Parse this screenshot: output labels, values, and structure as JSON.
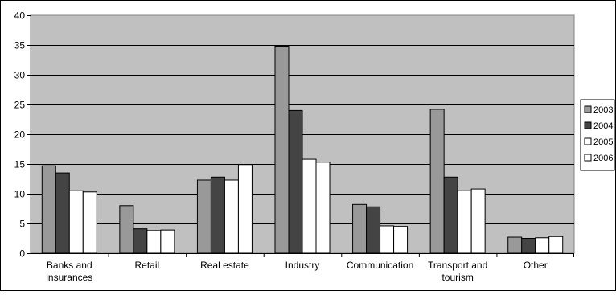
{
  "chart_data": {
    "type": "bar",
    "categories": [
      [
        "Banks and",
        "insurances"
      ],
      [
        "Retail"
      ],
      [
        "Real estate"
      ],
      [
        "Industry"
      ],
      [
        "Communication"
      ],
      [
        "Transport and",
        "tourism"
      ],
      [
        "Other"
      ]
    ],
    "series": [
      {
        "name": "2003",
        "color": "#999999",
        "values": [
          14.7,
          8.0,
          12.3,
          34.8,
          8.2,
          24.2,
          2.7
        ]
      },
      {
        "name": "2004",
        "color": "#444444",
        "values": [
          13.5,
          4.1,
          12.8,
          24.0,
          7.8,
          12.8,
          2.5
        ]
      },
      {
        "name": "2005",
        "color": "#ffffff",
        "values": [
          10.5,
          3.8,
          12.3,
          15.8,
          4.6,
          10.5,
          2.6
        ]
      },
      {
        "name": "2006",
        "color": "#ffffff",
        "values": [
          10.3,
          3.9,
          14.9,
          15.3,
          4.5,
          10.8,
          2.8
        ]
      }
    ],
    "ylim": [
      0,
      40
    ],
    "yticks": [
      0,
      5,
      10,
      15,
      20,
      25,
      30,
      35,
      40
    ],
    "grid": true,
    "legend_position": "right",
    "plot_background": "#c0c0c0"
  }
}
